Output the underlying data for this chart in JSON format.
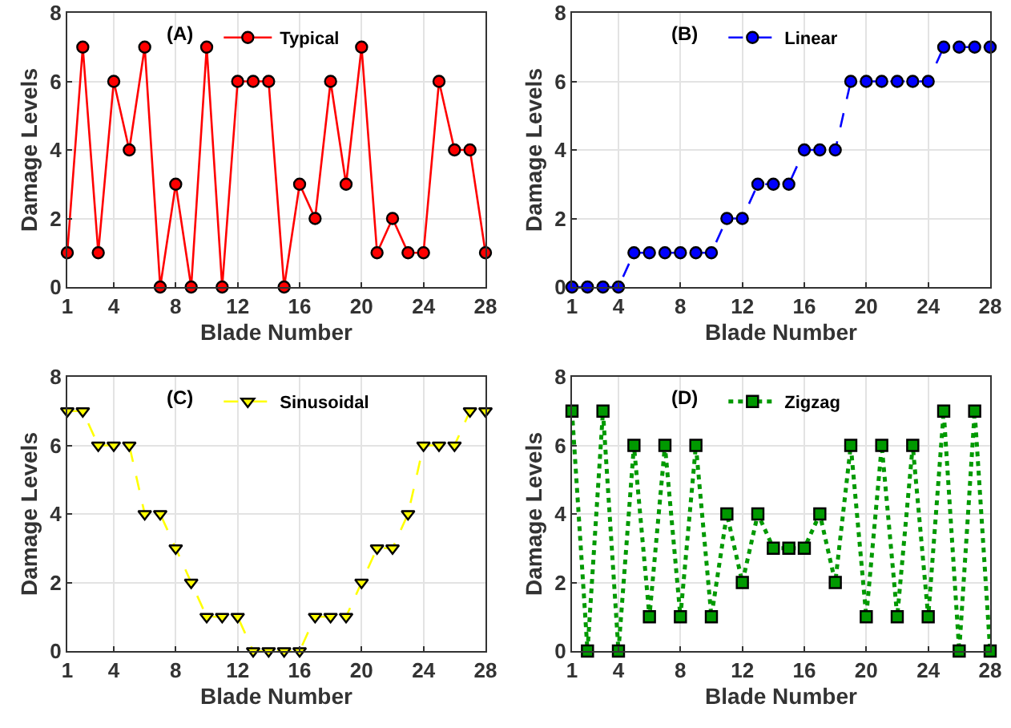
{
  "chart_data": [
    {
      "type": "line",
      "annotations": [
        "(A)"
      ],
      "xlabel": "Blade Number",
      "ylabel": "Damage Levels",
      "x": [
        1,
        2,
        3,
        4,
        5,
        6,
        7,
        8,
        9,
        10,
        11,
        12,
        13,
        14,
        15,
        16,
        17,
        18,
        19,
        20,
        21,
        22,
        23,
        24,
        25,
        26,
        27,
        28
      ],
      "xlim": [
        1,
        28
      ],
      "xticks": [
        1,
        4,
        8,
        12,
        16,
        20,
        24,
        28
      ],
      "ylim": [
        0,
        8
      ],
      "yticks": [
        0,
        2,
        4,
        6,
        8
      ],
      "grid": true,
      "legend": "top",
      "marker": "circle",
      "line_style": "solid",
      "series": [
        {
          "name": "Typical",
          "color": "#ff0000",
          "values": [
            1,
            7,
            1,
            6,
            4,
            7,
            0,
            3,
            0,
            7,
            0,
            6,
            6,
            6,
            0,
            3,
            2,
            6,
            3,
            7,
            1,
            2,
            1,
            1,
            6,
            4,
            4,
            1
          ]
        }
      ]
    },
    {
      "type": "line",
      "annotations": [
        "(B)"
      ],
      "xlabel": "Blade Number",
      "ylabel": "Damage Levels",
      "x": [
        1,
        2,
        3,
        4,
        5,
        6,
        7,
        8,
        9,
        10,
        11,
        12,
        13,
        14,
        15,
        16,
        17,
        18,
        19,
        20,
        21,
        22,
        23,
        24,
        25,
        26,
        27,
        28
      ],
      "xlim": [
        1,
        28
      ],
      "xticks": [
        1,
        4,
        8,
        12,
        16,
        20,
        24,
        28
      ],
      "ylim": [
        0,
        8
      ],
      "yticks": [
        0,
        2,
        4,
        6,
        8
      ],
      "grid": true,
      "legend": "top",
      "marker": "circle",
      "line_style": "dashed",
      "series": [
        {
          "name": "Linear",
          "color": "#0000ff",
          "values": [
            0,
            0,
            0,
            0,
            1,
            1,
            1,
            1,
            1,
            1,
            2,
            2,
            3,
            3,
            3,
            4,
            4,
            4,
            6,
            6,
            6,
            6,
            6,
            6,
            7,
            7,
            7,
            7
          ]
        }
      ]
    },
    {
      "type": "line",
      "annotations": [
        "(C)"
      ],
      "xlabel": "Blade Number",
      "ylabel": "Damage Levels",
      "x": [
        1,
        2,
        3,
        4,
        5,
        6,
        7,
        8,
        9,
        10,
        11,
        12,
        13,
        14,
        15,
        16,
        17,
        18,
        19,
        20,
        21,
        22,
        23,
        24,
        25,
        26,
        27,
        28
      ],
      "xlim": [
        1,
        28
      ],
      "xticks": [
        1,
        4,
        8,
        12,
        16,
        20,
        24,
        28
      ],
      "ylim": [
        0,
        8
      ],
      "yticks": [
        0,
        2,
        4,
        6,
        8
      ],
      "grid": true,
      "legend": "top",
      "marker": "triangle",
      "line_style": "dashed",
      "series": [
        {
          "name": "Sinusoidal",
          "color": "#ffff00",
          "values": [
            7,
            7,
            6,
            6,
            6,
            4,
            4,
            3,
            2,
            1,
            1,
            1,
            0,
            0,
            0,
            0,
            1,
            1,
            1,
            2,
            3,
            3,
            4,
            6,
            6,
            6,
            7,
            7
          ]
        }
      ]
    },
    {
      "type": "line",
      "annotations": [
        "(D)"
      ],
      "xlabel": "Blade Number",
      "ylabel": "Damage Levels",
      "x": [
        1,
        2,
        3,
        4,
        5,
        6,
        7,
        8,
        9,
        10,
        11,
        12,
        13,
        14,
        15,
        16,
        17,
        18,
        19,
        20,
        21,
        22,
        23,
        24,
        25,
        26,
        27,
        28
      ],
      "xlim": [
        1,
        28
      ],
      "xticks": [
        1,
        4,
        8,
        12,
        16,
        20,
        24,
        28
      ],
      "ylim": [
        0,
        8
      ],
      "yticks": [
        0,
        2,
        4,
        6,
        8
      ],
      "grid": true,
      "legend": "top",
      "marker": "square",
      "line_style": "dotted",
      "series": [
        {
          "name": "Zigzag",
          "color": "#009900",
          "values": [
            7,
            0,
            7,
            0,
            6,
            1,
            6,
            1,
            6,
            1,
            4,
            2,
            4,
            3,
            3,
            3,
            4,
            2,
            6,
            1,
            6,
            1,
            6,
            1,
            7,
            0,
            7,
            0
          ]
        }
      ]
    }
  ]
}
